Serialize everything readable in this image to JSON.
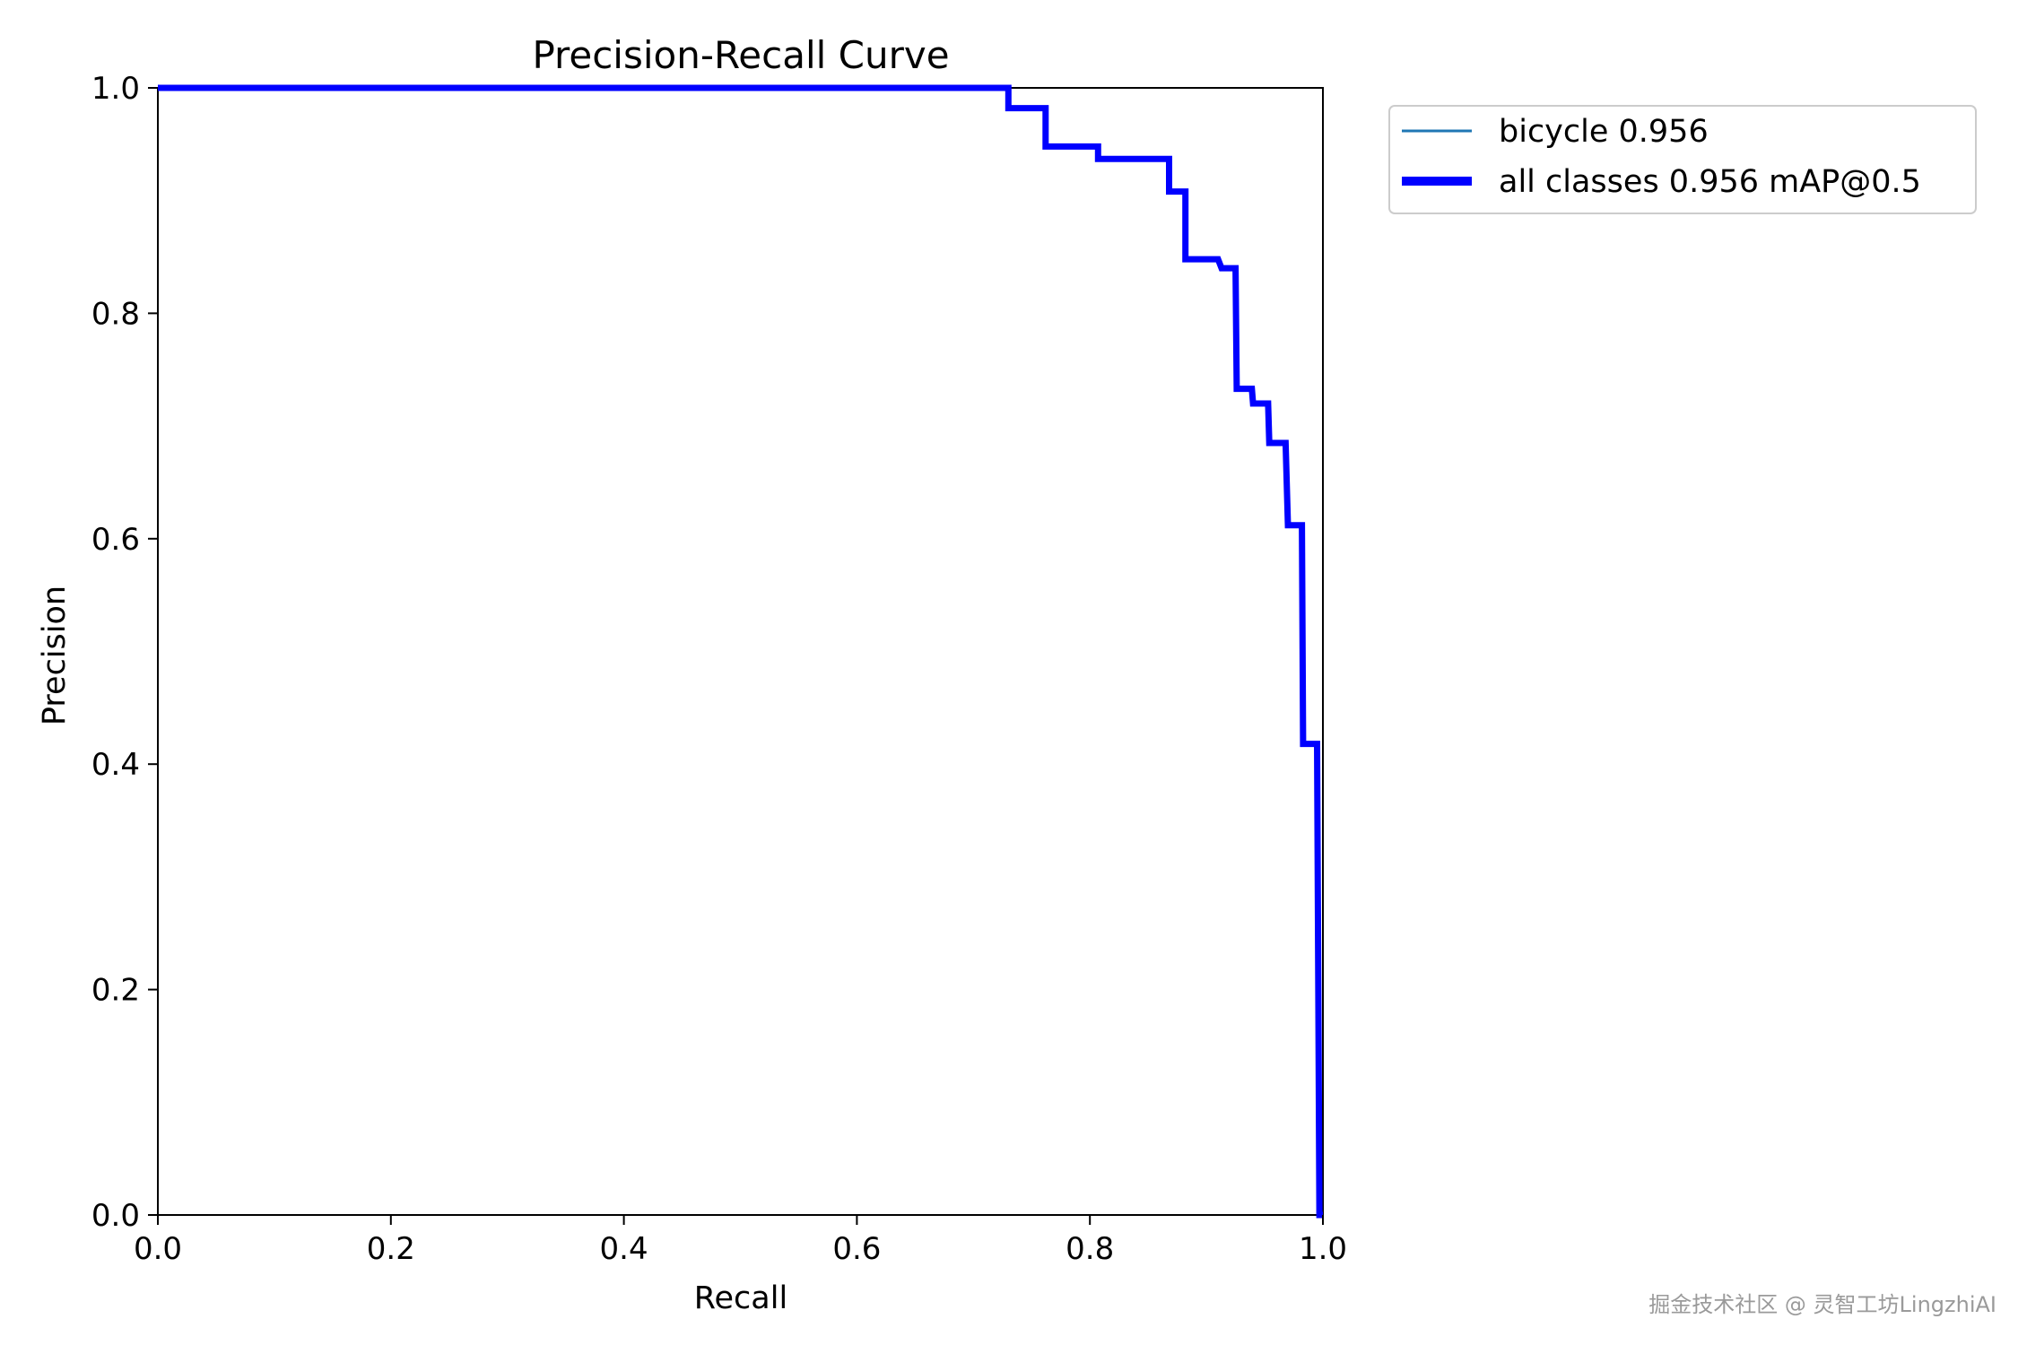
{
  "chart_data": {
    "type": "line",
    "title": "Precision-Recall Curve",
    "xlabel": "Recall",
    "ylabel": "Precision",
    "xlim": [
      0.0,
      1.0
    ],
    "ylim": [
      0.0,
      1.0
    ],
    "xticks": [
      "0.0",
      "0.2",
      "0.4",
      "0.6",
      "0.8",
      "1.0"
    ],
    "yticks": [
      "0.0",
      "0.2",
      "0.4",
      "0.6",
      "0.8",
      "1.0"
    ],
    "grid": false,
    "legend_position": "outside-top-right",
    "series": [
      {
        "name": "bicycle 0.956",
        "color": "#1f77b4",
        "line_width": "thin",
        "x": [
          0.0,
          0.73,
          0.73,
          0.762,
          0.762,
          0.807,
          0.807,
          0.868,
          0.868,
          0.882,
          0.882,
          0.91,
          0.913,
          0.925,
          0.926,
          0.939,
          0.94,
          0.953,
          0.954,
          0.968,
          0.97,
          0.982,
          0.983,
          0.995,
          0.997,
          1.0
        ],
        "y": [
          1.0,
          1.0,
          0.982,
          0.982,
          0.948,
          0.948,
          0.937,
          0.937,
          0.908,
          0.908,
          0.848,
          0.848,
          0.84,
          0.84,
          0.733,
          0.733,
          0.72,
          0.72,
          0.685,
          0.685,
          0.612,
          0.612,
          0.418,
          0.418,
          0.0,
          0.0
        ]
      },
      {
        "name": "all classes 0.956 mAP@0.5",
        "color": "#0000ff",
        "line_width": "thick",
        "x": [
          0.0,
          0.73,
          0.73,
          0.762,
          0.762,
          0.807,
          0.807,
          0.868,
          0.868,
          0.882,
          0.882,
          0.91,
          0.913,
          0.925,
          0.926,
          0.939,
          0.94,
          0.953,
          0.954,
          0.968,
          0.97,
          0.982,
          0.983,
          0.995,
          0.997,
          1.0
        ],
        "y": [
          1.0,
          1.0,
          0.982,
          0.982,
          0.948,
          0.948,
          0.937,
          0.937,
          0.908,
          0.908,
          0.848,
          0.848,
          0.84,
          0.84,
          0.733,
          0.733,
          0.72,
          0.72,
          0.685,
          0.685,
          0.612,
          0.612,
          0.418,
          0.418,
          0.0,
          0.0
        ]
      }
    ]
  },
  "watermark": "掘金技术社区 @ 灵智工坊LingzhiAI"
}
